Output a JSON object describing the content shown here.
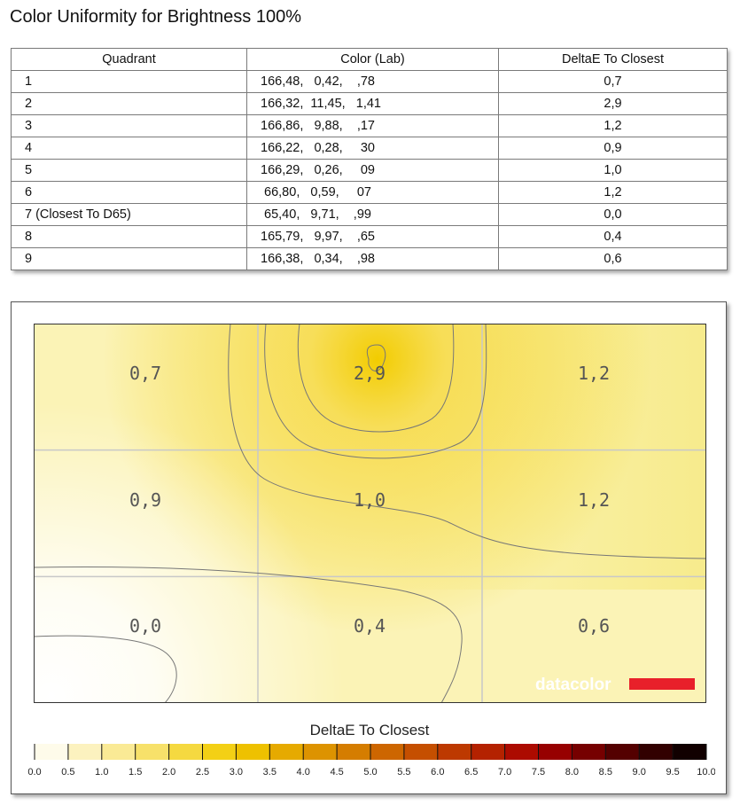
{
  "page": {
    "title": "Color Uniformity for Brightness 100%"
  },
  "table": {
    "headers": [
      "Quadrant",
      "Color (Lab)",
      "DeltaE To Closest"
    ],
    "rows": [
      [
        "1",
        "166,48,   0,42,    ,78",
        "0,7"
      ],
      [
        "2",
        "166,32,  11,45,   1,41",
        "2,9"
      ],
      [
        "3",
        "166,86,   9,88,    ,17",
        "1,2"
      ],
      [
        "4",
        "166,22,   0,28,     30",
        "0,9"
      ],
      [
        "5",
        "166,29,   0,26,     09",
        "1,0"
      ],
      [
        "6",
        " 66,80,   0,59,     07",
        "1,2"
      ],
      [
        "7 (Closest To D65)",
        " 65,40,   9,71,    ,99",
        "0,0"
      ],
      [
        "8",
        "165,79,   9,97,    ,65",
        "0,4"
      ],
      [
        "9",
        "166,38,   0,34,    ,98",
        "0,6"
      ]
    ]
  },
  "chart_data": {
    "type": "heatmap",
    "title": "",
    "rows": 3,
    "cols": 3,
    "values": [
      [
        0.7,
        2.9,
        1.2
      ],
      [
        0.9,
        1.0,
        1.2
      ],
      [
        0.0,
        0.4,
        0.6
      ]
    ],
    "labels": [
      [
        "0,7",
        "2,9",
        "1,2"
      ],
      [
        "0,9",
        "1,0",
        "1,2"
      ],
      [
        "0,0",
        "0,4",
        "0,6"
      ]
    ],
    "colorbar": {
      "title": "DeltaE To Closest",
      "min": 0.0,
      "max": 10.0,
      "step": 0.5,
      "tick_labels": [
        "0.0",
        "0.5",
        "1.0",
        "1.5",
        "2.0",
        "2.5",
        "3.0",
        "3.5",
        "4.0",
        "4.5",
        "5.0",
        "5.5",
        "6.0",
        "6.5",
        "7.0",
        "7.5",
        "8.0",
        "8.5",
        "9.0",
        "9.5",
        "10.0"
      ]
    },
    "colors": {
      "low": "#ffffff",
      "mid": "#f2cc00",
      "high": "#a80000",
      "max": "#000000",
      "contour": "#777777",
      "grid": "#c8c8c8"
    },
    "watermark": {
      "text": "datacolor",
      "bar_color": "#e8202a"
    }
  }
}
